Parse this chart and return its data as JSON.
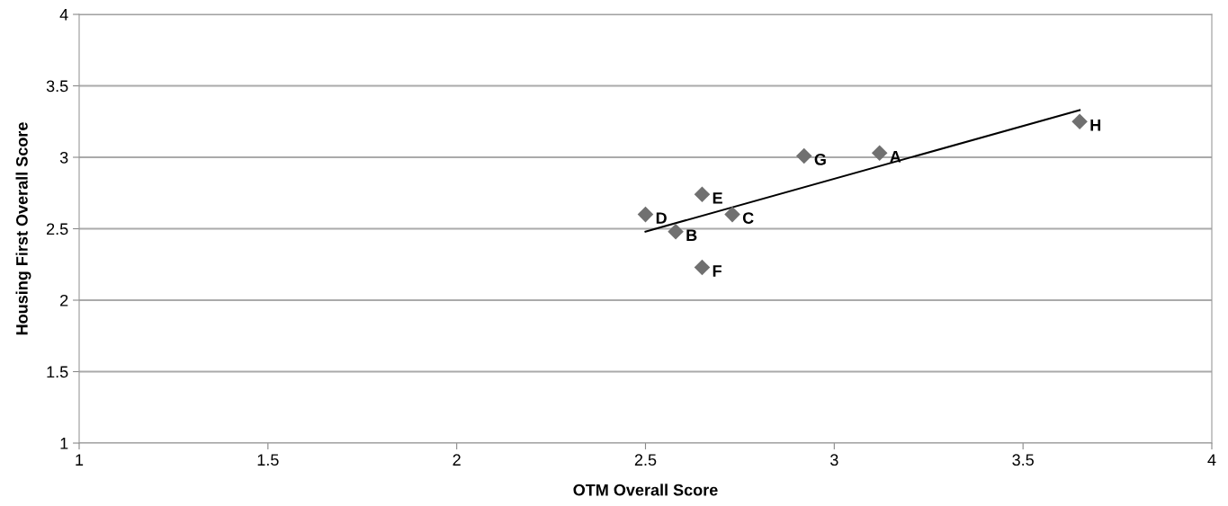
{
  "chart_data": {
    "type": "scatter",
    "xlabel": "OTM Overall Score",
    "ylabel": "Housing First Overall Score",
    "xlim": [
      1,
      4
    ],
    "xticks": [
      1,
      1.5,
      2,
      2.5,
      3,
      3.5,
      4
    ],
    "ylim": [
      1,
      4
    ],
    "yticks": [
      1,
      1.5,
      2,
      2.5,
      3,
      3.5,
      4
    ],
    "grid": "y",
    "marker": "diamond",
    "series": [
      {
        "color": "#707070",
        "x": [
          3.12,
          2.58,
          2.73,
          2.5,
          2.65,
          2.65,
          2.92,
          3.65
        ],
        "values": [
          3.03,
          2.48,
          2.6,
          2.6,
          2.74,
          2.23,
          3.01,
          3.25
        ]
      },
      {
        "type": "line",
        "color": "#000000",
        "marker": "none",
        "x": [
          2.5,
          3.65
        ],
        "values": [
          2.48,
          3.33
        ]
      }
    ],
    "annotations": [
      {
        "text": "A",
        "x": 3.12,
        "y": 3.03
      },
      {
        "text": "B",
        "x": 2.58,
        "y": 2.48
      },
      {
        "text": "C",
        "x": 2.73,
        "y": 2.6
      },
      {
        "text": "D",
        "x": 2.5,
        "y": 2.6
      },
      {
        "text": "E",
        "x": 2.65,
        "y": 2.74
      },
      {
        "text": "F",
        "x": 2.65,
        "y": 2.23
      },
      {
        "text": "G",
        "x": 2.92,
        "y": 3.01
      },
      {
        "text": "H",
        "x": 3.65,
        "y": 3.25
      }
    ]
  }
}
